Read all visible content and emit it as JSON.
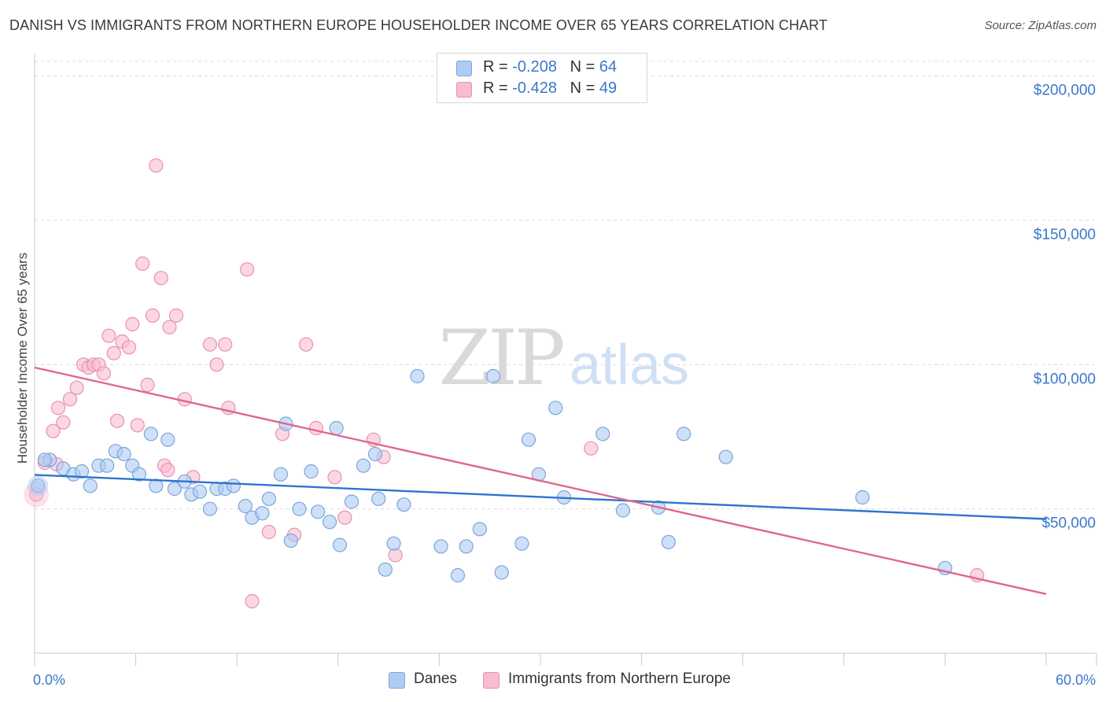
{
  "header": {
    "title": "DANISH VS IMMIGRANTS FROM NORTHERN EUROPE HOUSEHOLDER INCOME OVER 65 YEARS CORRELATION CHART",
    "source": "Source: ZipAtlas.com"
  },
  "watermark": {
    "zip": "ZIP",
    "atlas": "atlas"
  },
  "legend": {
    "danes": {
      "r_label": "R = ",
      "r_value": "-0.208",
      "n_label": "N = ",
      "n_value": "64"
    },
    "immigrants": {
      "r_label": "R = ",
      "r_value": "-0.428",
      "n_label": "N = ",
      "n_value": "49"
    }
  },
  "bottom_legend": {
    "danes": "Danes",
    "immigrants": "Immigrants from Northern Europe"
  },
  "colors": {
    "danes_fill": "#aeccf2",
    "danes_stroke": "#7aa5dc",
    "danes_line": "#2e74d0",
    "imm_fill": "#f7bcd0",
    "imm_stroke": "#ec8fae",
    "imm_line": "#e06690",
    "axis_label": "#3b78c8",
    "grid": "#dcdcdc"
  },
  "chart_data": {
    "type": "scatter",
    "title": "DANISH VS IMMIGRANTS FROM NORTHERN EUROPE HOUSEHOLDER INCOME OVER 65 YEARS CORRELATION CHART",
    "xlabel": "",
    "ylabel": "Householder Income Over 65 years",
    "xlim": [
      0,
      60
    ],
    "ylim": [
      0,
      210000
    ],
    "x_tick_labels": [
      "0.0%",
      "60.0%"
    ],
    "y_ticks": [
      50000,
      100000,
      150000,
      200000
    ],
    "y_tick_labels": [
      "$50,000",
      "$100,000",
      "$150,000",
      "$200,000"
    ],
    "grid": "horizontal dashed",
    "legend_position": "top-center",
    "series": [
      {
        "name": "Danes",
        "r": -0.208,
        "n": 64,
        "trend": {
          "x": [
            0,
            60
          ],
          "y": [
            61800,
            46500
          ]
        },
        "points": [
          [
            0.2,
            58000
          ],
          [
            0.9,
            67000
          ],
          [
            1.7,
            64000
          ],
          [
            2.3,
            62000
          ],
          [
            2.8,
            63000
          ],
          [
            3.3,
            58000
          ],
          [
            3.8,
            65000
          ],
          [
            4.3,
            65000
          ],
          [
            4.8,
            70000
          ],
          [
            5.3,
            69000
          ],
          [
            5.8,
            65000
          ],
          [
            6.2,
            62000
          ],
          [
            6.9,
            76000
          ],
          [
            7.2,
            58000
          ],
          [
            7.9,
            74000
          ],
          [
            8.3,
            57000
          ],
          [
            8.9,
            59500
          ],
          [
            9.3,
            55000
          ],
          [
            9.8,
            56000
          ],
          [
            10.4,
            50000
          ],
          [
            10.8,
            57000
          ],
          [
            11.3,
            57000
          ],
          [
            11.8,
            58000
          ],
          [
            12.5,
            51000
          ],
          [
            12.9,
            47000
          ],
          [
            13.5,
            48500
          ],
          [
            13.9,
            53500
          ],
          [
            14.6,
            62000
          ],
          [
            14.9,
            79500
          ],
          [
            15.2,
            39000
          ],
          [
            15.7,
            50000
          ],
          [
            16.4,
            63000
          ],
          [
            16.8,
            49000
          ],
          [
            17.5,
            45500
          ],
          [
            17.9,
            78000
          ],
          [
            18.1,
            37500
          ],
          [
            18.8,
            52500
          ],
          [
            19.5,
            65000
          ],
          [
            20.2,
            69000
          ],
          [
            20.4,
            53500
          ],
          [
            20.8,
            29000
          ],
          [
            21.3,
            38000
          ],
          [
            21.9,
            51500
          ],
          [
            22.7,
            96000
          ],
          [
            24.1,
            37000
          ],
          [
            25.1,
            27000
          ],
          [
            25.6,
            37000
          ],
          [
            26.4,
            43000
          ],
          [
            27.2,
            96000
          ],
          [
            27.7,
            28000
          ],
          [
            28.9,
            38000
          ],
          [
            29.3,
            74000
          ],
          [
            29.9,
            62000
          ],
          [
            30.9,
            85000
          ],
          [
            31.4,
            54000
          ],
          [
            33.7,
            76000
          ],
          [
            34.9,
            49500
          ],
          [
            37.0,
            50500
          ],
          [
            37.6,
            38500
          ],
          [
            38.5,
            76000
          ],
          [
            41.0,
            68000
          ],
          [
            49.1,
            54000
          ],
          [
            54.0,
            29500
          ],
          [
            0.6,
            67000
          ]
        ]
      },
      {
        "name": "Immigrants from Northern Europe",
        "r": -0.428,
        "n": 49,
        "trend": {
          "x": [
            0,
            60
          ],
          "y": [
            99000,
            20500
          ]
        },
        "points": [
          [
            0.1,
            55000
          ],
          [
            0.6,
            66000
          ],
          [
            1.1,
            77000
          ],
          [
            1.4,
            85000
          ],
          [
            1.7,
            80000
          ],
          [
            2.1,
            88000
          ],
          [
            2.5,
            92000
          ],
          [
            2.9,
            100000
          ],
          [
            3.2,
            99000
          ],
          [
            3.5,
            100000
          ],
          [
            3.8,
            100000
          ],
          [
            4.1,
            97000
          ],
          [
            4.4,
            110000
          ],
          [
            4.7,
            104000
          ],
          [
            4.9,
            80500
          ],
          [
            5.2,
            108000
          ],
          [
            5.6,
            106000
          ],
          [
            5.8,
            114000
          ],
          [
            6.1,
            79000
          ],
          [
            6.4,
            135000
          ],
          [
            6.7,
            93000
          ],
          [
            7.0,
            117000
          ],
          [
            7.2,
            169000
          ],
          [
            7.5,
            130000
          ],
          [
            7.7,
            65000
          ],
          [
            7.9,
            63500
          ],
          [
            8.0,
            113000
          ],
          [
            8.4,
            117000
          ],
          [
            8.9,
            88000
          ],
          [
            9.4,
            61000
          ],
          [
            10.4,
            107000
          ],
          [
            10.8,
            100000
          ],
          [
            11.3,
            107000
          ],
          [
            11.5,
            85000
          ],
          [
            12.6,
            133000
          ],
          [
            12.9,
            18000
          ],
          [
            13.9,
            42000
          ],
          [
            14.7,
            76000
          ],
          [
            15.4,
            41000
          ],
          [
            16.1,
            107000
          ],
          [
            16.7,
            78000
          ],
          [
            17.8,
            61000
          ],
          [
            18.4,
            47000
          ],
          [
            20.1,
            74000
          ],
          [
            20.7,
            68000
          ],
          [
            21.4,
            34000
          ],
          [
            33.0,
            71000
          ],
          [
            55.9,
            27000
          ],
          [
            1.3,
            65500
          ]
        ]
      }
    ]
  }
}
